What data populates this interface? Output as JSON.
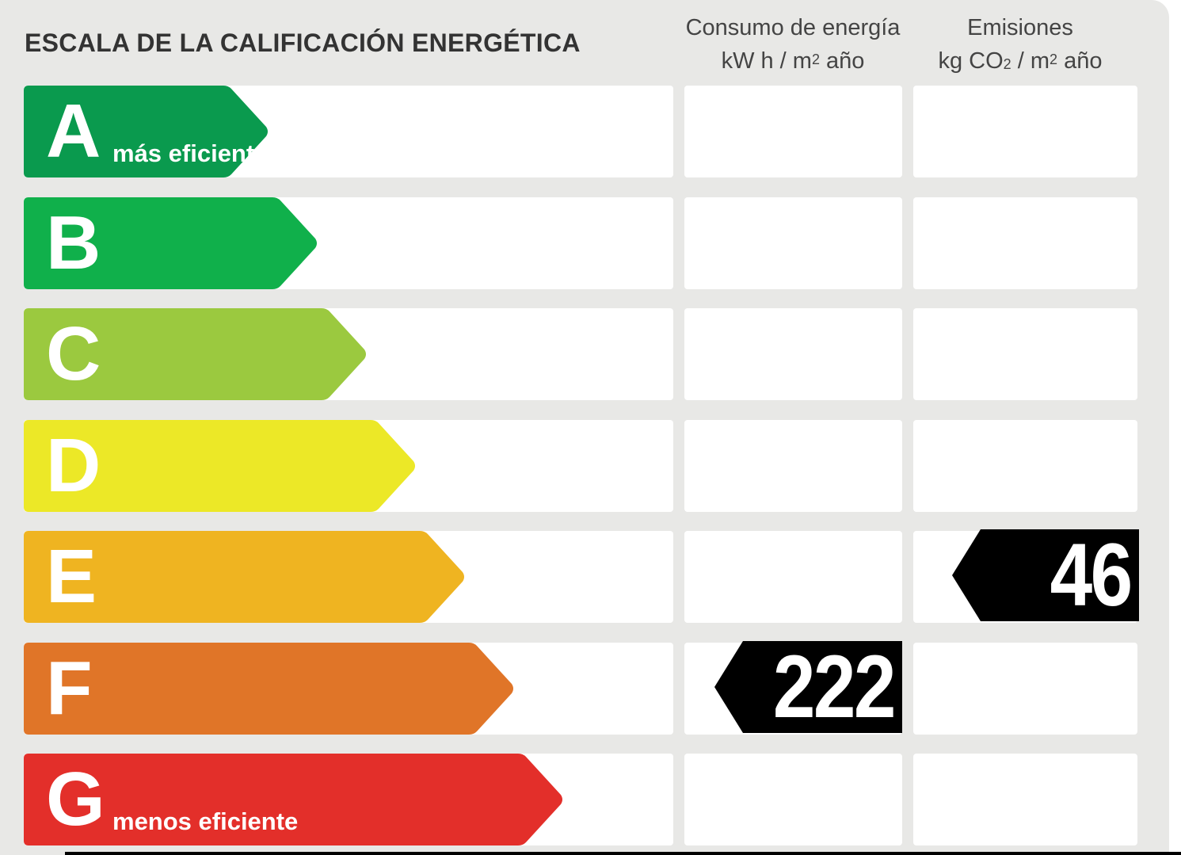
{
  "title": "ESCALA DE LA CALIFICACIÓN ENERGÉTICA",
  "columns": {
    "consumption": {
      "line1": "Consumo de energía",
      "unit_a": "kW h  / m",
      "unit_sup": "2",
      "unit_b": " año"
    },
    "emissions": {
      "line1": "Emisiones",
      "unit_a": "kg CO",
      "unit_sub": "2",
      "unit_b": "  / m",
      "unit_sup": "2",
      "unit_c": " año"
    }
  },
  "ratings": [
    {
      "letter": "A",
      "label": "más eficiente",
      "color": "#0a9a4e"
    },
    {
      "letter": "B",
      "label": "",
      "color": "#10b04b"
    },
    {
      "letter": "C",
      "label": "",
      "color": "#9bc93f"
    },
    {
      "letter": "D",
      "label": "",
      "color": "#ece827"
    },
    {
      "letter": "E",
      "label": "",
      "color": "#efb421"
    },
    {
      "letter": "F",
      "label": "",
      "color": "#e07528"
    },
    {
      "letter": "G",
      "label": "menos eficiente",
      "color": "#e32f2a"
    }
  ],
  "results": {
    "consumption": {
      "value": "222",
      "rating": "F"
    },
    "emissions": {
      "value": "46",
      "rating": "E"
    }
  }
}
